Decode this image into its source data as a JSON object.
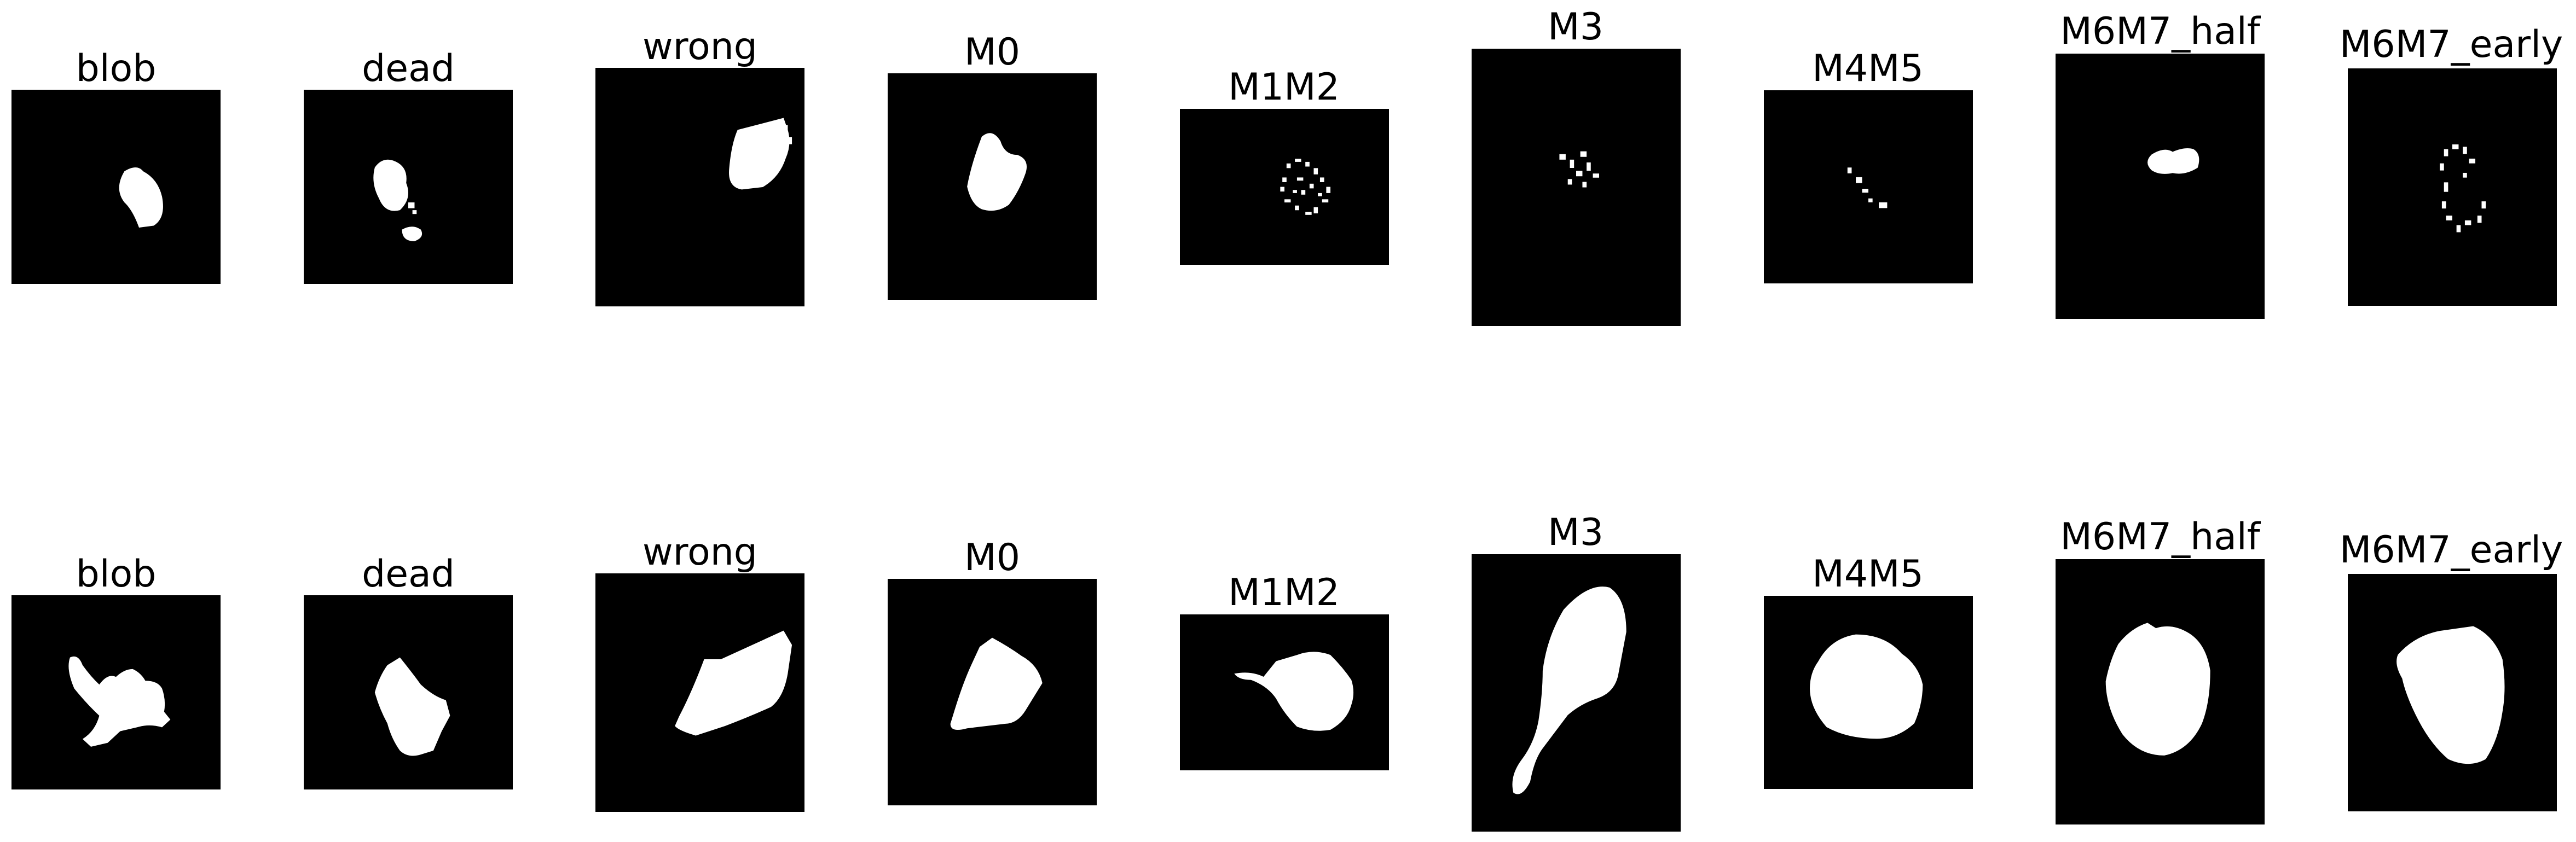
{
  "figure": {
    "rows": [
      {
        "row": "top",
        "panels": [
          {
            "title": "blob"
          },
          {
            "title": "dead"
          },
          {
            "title": "wrong"
          },
          {
            "title": "M0"
          },
          {
            "title": "M1M2"
          },
          {
            "title": "M3"
          },
          {
            "title": "M4M5"
          },
          {
            "title": "M6M7_half"
          },
          {
            "title": "M6M7_early"
          }
        ]
      },
      {
        "row": "bottom",
        "panels": [
          {
            "title": "blob"
          },
          {
            "title": "dead"
          },
          {
            "title": "wrong"
          },
          {
            "title": "M0"
          },
          {
            "title": "M1M2"
          },
          {
            "title": "M3"
          },
          {
            "title": "M4M5"
          },
          {
            "title": "M6M7_half"
          },
          {
            "title": "M6M7_early"
          }
        ]
      }
    ],
    "colors": {
      "background": "#000000",
      "foreground": "#ffffff",
      "page": "#ffffff"
    }
  }
}
